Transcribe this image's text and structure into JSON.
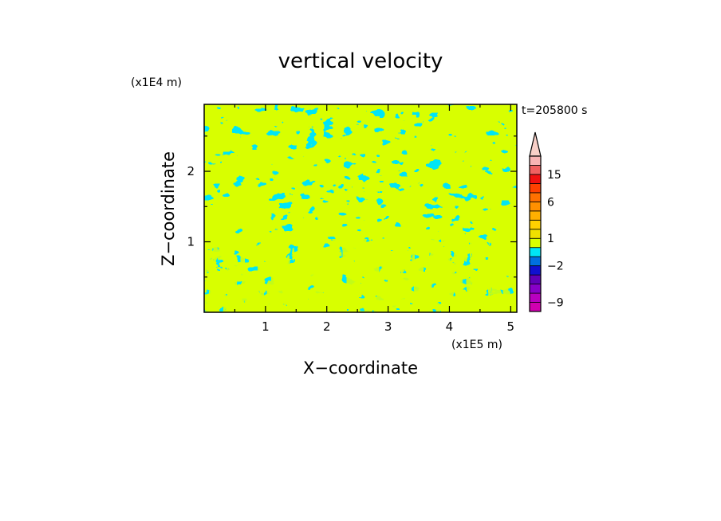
{
  "chart_data": {
    "type": "heatmap",
    "title": "vertical velocity",
    "time_label": "t=205800 s",
    "xlabel": "X−coordinate",
    "ylabel": "Z−coordinate",
    "x_unit": "(x1E5 m)",
    "y_unit": "(x1E4 m)",
    "xlim": [
      0.0,
      5.1
    ],
    "ylim": [
      0.0,
      2.95
    ],
    "x_ticks": [
      1,
      2,
      3,
      4,
      5
    ],
    "x_tick_labels": [
      "1",
      "2",
      "3",
      "4",
      "5"
    ],
    "y_ticks": [
      1,
      2
    ],
    "y_tick_labels": [
      "1",
      "2"
    ],
    "field_colors": {
      "negative": "#00e5f5",
      "positive": "#d8ff00"
    },
    "colorbar": {
      "levels": [
        {
          "value": -10,
          "color": "#d000b0"
        },
        {
          "value": -9,
          "color": "#b800c0"
        },
        {
          "value": -7,
          "color": "#8800c8"
        },
        {
          "value": -5,
          "color": "#6000b8"
        },
        {
          "value": -3,
          "color": "#1010d0"
        },
        {
          "value": -2,
          "color": "#0070e0"
        },
        {
          "value": -1,
          "color": "#00e5f5"
        },
        {
          "value": 0,
          "color": "#d8ff00"
        },
        {
          "value": 1,
          "color": "#f0e000"
        },
        {
          "value": 2,
          "color": "#ffd000"
        },
        {
          "value": 3,
          "color": "#ffb000"
        },
        {
          "value": 4,
          "color": "#ff9000"
        },
        {
          "value": 6,
          "color": "#ff7000"
        },
        {
          "value": 9,
          "color": "#ff4000"
        },
        {
          "value": 12,
          "color": "#f01010"
        },
        {
          "value": 15,
          "color": "#f06060"
        },
        {
          "value": 18,
          "color": "#f8b4b4"
        }
      ],
      "labels": [
        "15",
        "6",
        "1",
        "−2",
        "−9"
      ],
      "extend": "max",
      "extend_color": "#f8d0c8"
    }
  }
}
